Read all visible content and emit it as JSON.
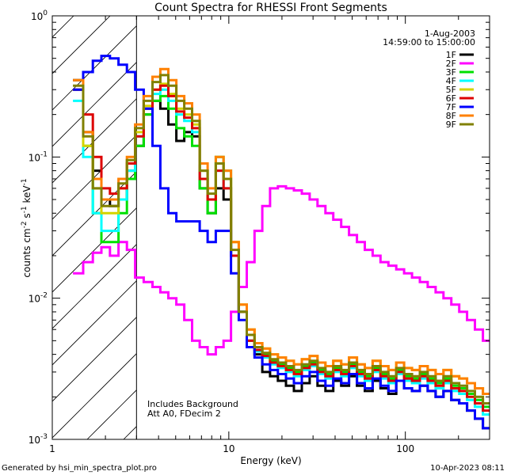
{
  "chart_data": {
    "type": "line",
    "title": "Count Spectra for RHESSI Front Segments",
    "xlabel": "Energy (keV)",
    "ylabel_parts": [
      "counts cm",
      "-2",
      " s",
      "-1",
      " keV",
      "-1"
    ],
    "xlim": [
      1,
      300
    ],
    "ylim": [
      0.001,
      1
    ],
    "x_scale": "log",
    "y_scale": "log",
    "x_ticks": [
      {
        "value": 1,
        "label": "1"
      },
      {
        "value": 10,
        "label": "10"
      },
      {
        "value": 100,
        "label": "100"
      }
    ],
    "y_ticks": [
      {
        "value": 1,
        "mant": "10",
        "exp": "0"
      },
      {
        "value": 0.1,
        "mant": "10",
        "exp": "-1"
      },
      {
        "value": 0.01,
        "mant": "10",
        "exp": "-2"
      },
      {
        "value": 0.001,
        "mant": "10",
        "exp": "-3"
      }
    ],
    "hatched_region_max_energy": 3,
    "date": "1-Aug-2003",
    "time_range": "14:59:00 to 15:00:00",
    "annotations": [
      "Includes Background",
      "Att A0, FDecim 2"
    ],
    "footer_left": "Generated by hsi_min_spectra_plot.pro",
    "footer_right": "10-Apr-2023 08:11",
    "energy_bins": [
      1.4,
      1.6,
      1.8,
      2.0,
      2.25,
      2.5,
      2.8,
      3.1,
      3.5,
      3.9,
      4.3,
      4.8,
      5.3,
      5.9,
      6.5,
      7.2,
      8.0,
      8.9,
      9.8,
      10.8,
      12.0,
      13.3,
      14.7,
      16.3,
      18.0,
      20.0,
      22.2,
      24.6,
      27.3,
      30.2,
      33.5,
      37.1,
      41.1,
      45.6,
      50.5,
      56.0,
      62.0,
      68.7,
      76.1,
      84.4,
      93.5,
      103.6,
      114.8,
      127.2,
      141.0,
      156.2,
      173.1,
      191.8,
      212.6,
      235.5,
      261.0,
      290.0
    ],
    "series": [
      {
        "name": "1F",
        "color": "#000000",
        "values": [
          0.35,
          0.15,
          0.08,
          0.05,
          0.045,
          0.05,
          0.08,
          0.12,
          0.2,
          0.25,
          0.22,
          0.17,
          0.13,
          0.15,
          0.14,
          0.06,
          0.04,
          0.06,
          0.05,
          0.02,
          0.008,
          0.005,
          0.004,
          0.003,
          0.0028,
          0.0026,
          0.0024,
          0.0022,
          0.0025,
          0.0028,
          0.0024,
          0.0022,
          0.0026,
          0.0024,
          0.0028,
          0.0024,
          0.0022,
          0.0026,
          0.0023,
          0.0021,
          0.0026,
          0.0023,
          0.0022,
          0.0024,
          0.0022,
          0.002,
          0.0022,
          0.0019,
          0.0018,
          0.0016,
          0.0014,
          0.0012
        ]
      },
      {
        "name": "2F",
        "color": "#ff00ff",
        "values": [
          0.015,
          0.018,
          0.021,
          0.023,
          0.02,
          0.025,
          0.022,
          0.014,
          0.013,
          0.012,
          0.011,
          0.01,
          0.009,
          0.007,
          0.005,
          0.0045,
          0.004,
          0.0045,
          0.005,
          0.008,
          0.012,
          0.018,
          0.03,
          0.045,
          0.06,
          0.062,
          0.06,
          0.058,
          0.055,
          0.05,
          0.045,
          0.04,
          0.036,
          0.032,
          0.028,
          0.025,
          0.022,
          0.02,
          0.018,
          0.017,
          0.016,
          0.015,
          0.014,
          0.013,
          0.012,
          0.011,
          0.01,
          0.009,
          0.008,
          0.007,
          0.006,
          0.005
        ]
      },
      {
        "name": "3F",
        "color": "#00e000",
        "values": [
          0.3,
          0.12,
          0.04,
          0.025,
          0.025,
          0.04,
          0.07,
          0.12,
          0.2,
          0.25,
          0.27,
          0.22,
          0.16,
          0.14,
          0.12,
          0.06,
          0.04,
          0.1,
          0.08,
          0.02,
          0.008,
          0.005,
          0.0045,
          0.004,
          0.0036,
          0.0034,
          0.0032,
          0.003,
          0.0033,
          0.0035,
          0.0031,
          0.0029,
          0.0032,
          0.003,
          0.0034,
          0.003,
          0.0028,
          0.0032,
          0.0029,
          0.0027,
          0.0031,
          0.0028,
          0.0027,
          0.0029,
          0.0027,
          0.0025,
          0.0027,
          0.0024,
          0.0023,
          0.0021,
          0.0019,
          0.0017
        ]
      },
      {
        "name": "4F",
        "color": "#00ffff",
        "values": [
          0.25,
          0.1,
          0.04,
          0.03,
          0.03,
          0.05,
          0.08,
          0.14,
          0.22,
          0.28,
          0.3,
          0.25,
          0.2,
          0.18,
          0.15,
          0.07,
          0.05,
          0.08,
          0.06,
          0.02,
          0.008,
          0.005,
          0.0042,
          0.0038,
          0.0034,
          0.0032,
          0.003,
          0.0028,
          0.0031,
          0.0033,
          0.0029,
          0.0027,
          0.003,
          0.0028,
          0.0032,
          0.0028,
          0.0026,
          0.003,
          0.0027,
          0.0025,
          0.0029,
          0.0026,
          0.0025,
          0.0027,
          0.0025,
          0.0023,
          0.0025,
          0.0022,
          0.0021,
          0.0019,
          0.0017,
          0.0015
        ]
      },
      {
        "name": "5F",
        "color": "#d4d400",
        "values": [
          0.3,
          0.12,
          0.06,
          0.04,
          0.04,
          0.06,
          0.09,
          0.15,
          0.23,
          0.3,
          0.33,
          0.28,
          0.22,
          0.2,
          0.17,
          0.08,
          0.05,
          0.09,
          0.07,
          0.025,
          0.009,
          0.006,
          0.0048,
          0.0044,
          0.004,
          0.0038,
          0.0036,
          0.0034,
          0.0037,
          0.0039,
          0.0035,
          0.0033,
          0.0036,
          0.0034,
          0.0038,
          0.0034,
          0.0032,
          0.0036,
          0.0033,
          0.0031,
          0.0035,
          0.0032,
          0.0031,
          0.0033,
          0.0031,
          0.0029,
          0.0031,
          0.0028,
          0.0027,
          0.0025,
          0.0023,
          0.0021
        ]
      },
      {
        "name": "6F",
        "color": "#dd0000",
        "values": [
          0.3,
          0.2,
          0.1,
          0.06,
          0.055,
          0.06,
          0.09,
          0.14,
          0.22,
          0.3,
          0.32,
          0.27,
          0.21,
          0.19,
          0.16,
          0.07,
          0.05,
          0.08,
          0.06,
          0.02,
          0.008,
          0.005,
          0.0043,
          0.0039,
          0.0035,
          0.0033,
          0.0031,
          0.0029,
          0.0032,
          0.0034,
          0.003,
          0.0028,
          0.0031,
          0.0029,
          0.0033,
          0.0029,
          0.0027,
          0.0031,
          0.0028,
          0.0026,
          0.003,
          0.0027,
          0.0026,
          0.0028,
          0.0026,
          0.0024,
          0.0026,
          0.0023,
          0.0022,
          0.002,
          0.0018,
          0.0016
        ]
      },
      {
        "name": "7F",
        "color": "#0000ff",
        "values": [
          0.3,
          0.4,
          0.48,
          0.52,
          0.5,
          0.45,
          0.4,
          0.3,
          0.22,
          0.12,
          0.06,
          0.04,
          0.035,
          0.035,
          0.035,
          0.03,
          0.025,
          0.03,
          0.03,
          0.015,
          0.007,
          0.0045,
          0.0038,
          0.0034,
          0.0031,
          0.0029,
          0.0027,
          0.0025,
          0.0028,
          0.003,
          0.0026,
          0.0024,
          0.0027,
          0.0025,
          0.0029,
          0.0025,
          0.0023,
          0.0027,
          0.0024,
          0.0022,
          0.0026,
          0.0023,
          0.0022,
          0.0024,
          0.0022,
          0.002,
          0.0022,
          0.0019,
          0.0018,
          0.0016,
          0.0014,
          0.0012
        ]
      },
      {
        "name": "8F",
        "color": "#ff8000",
        "values": [
          0.35,
          0.15,
          0.07,
          0.05,
          0.05,
          0.07,
          0.1,
          0.17,
          0.27,
          0.37,
          0.42,
          0.35,
          0.27,
          0.24,
          0.2,
          0.09,
          0.06,
          0.1,
          0.08,
          0.025,
          0.009,
          0.006,
          0.0048,
          0.0044,
          0.004,
          0.0038,
          0.0036,
          0.0034,
          0.0037,
          0.0039,
          0.0035,
          0.0033,
          0.0036,
          0.0034,
          0.0038,
          0.0034,
          0.0032,
          0.0036,
          0.0033,
          0.0031,
          0.0035,
          0.0032,
          0.0031,
          0.0033,
          0.0031,
          0.0029,
          0.0031,
          0.0028,
          0.0027,
          0.0025,
          0.0023,
          0.0021
        ]
      },
      {
        "name": "9F",
        "color": "#808000",
        "values": [
          0.32,
          0.14,
          0.06,
          0.045,
          0.045,
          0.065,
          0.095,
          0.16,
          0.25,
          0.34,
          0.38,
          0.32,
          0.25,
          0.22,
          0.18,
          0.08,
          0.055,
          0.09,
          0.07,
          0.022,
          0.008,
          0.0055,
          0.0045,
          0.0041,
          0.0037,
          0.0035,
          0.0033,
          0.0031,
          0.0034,
          0.0036,
          0.0032,
          0.003,
          0.0033,
          0.0031,
          0.0035,
          0.0031,
          0.0029,
          0.0033,
          0.003,
          0.0028,
          0.0032,
          0.0029,
          0.0028,
          0.003,
          0.0028,
          0.0026,
          0.0028,
          0.0025,
          0.0024,
          0.0022,
          0.002,
          0.0018
        ]
      }
    ]
  }
}
